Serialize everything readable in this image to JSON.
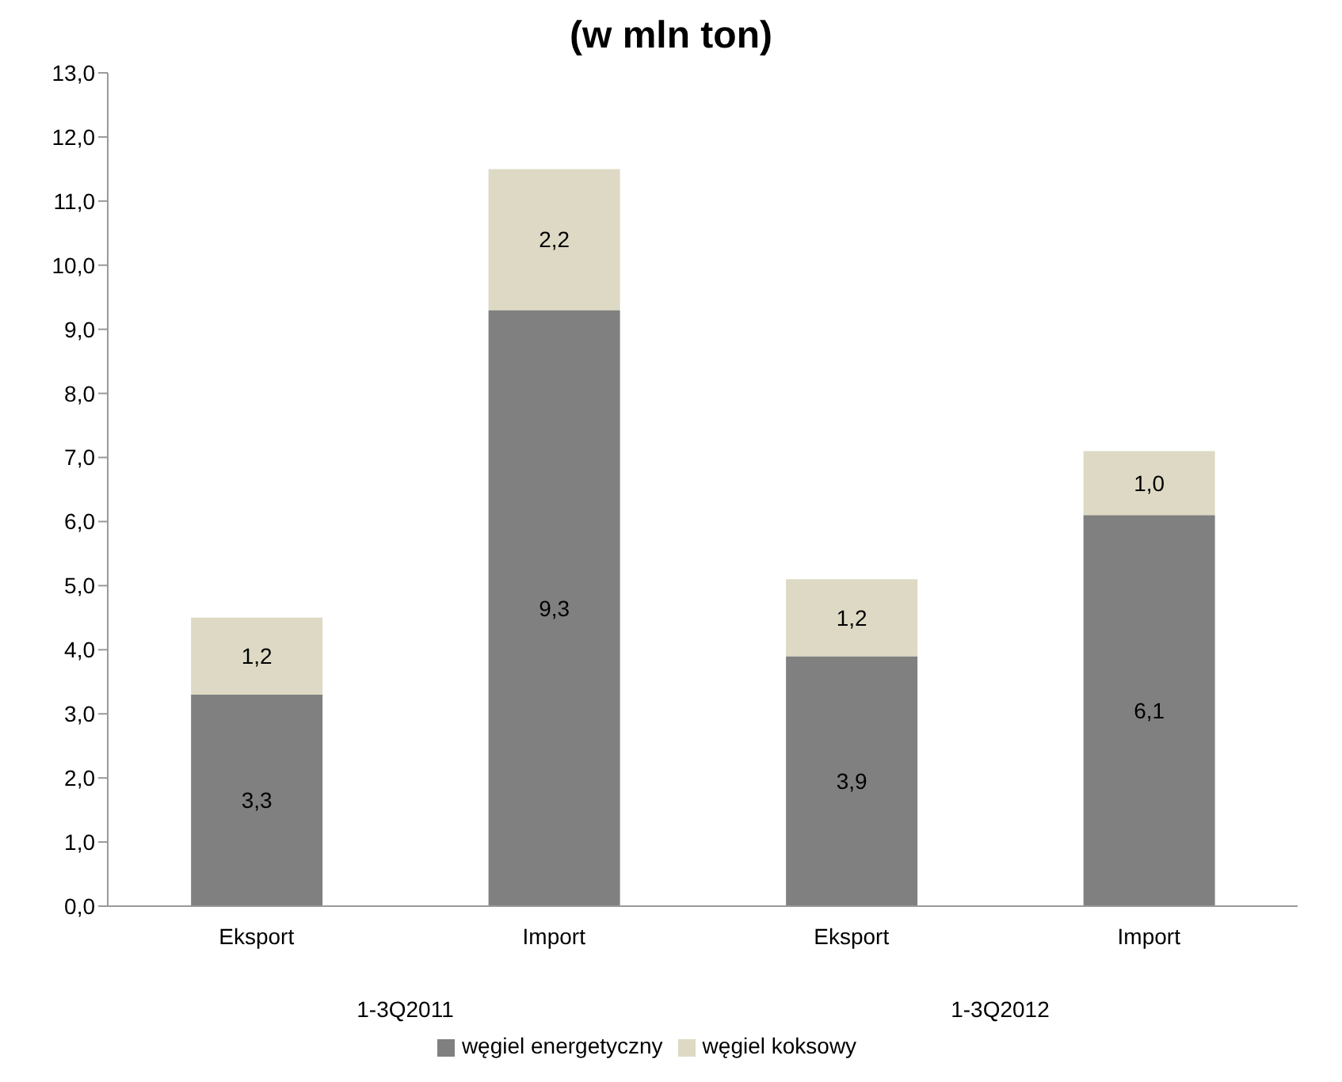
{
  "chart_data": {
    "type": "bar",
    "title": "(w mln ton)",
    "stacked": true,
    "categories": [
      "Eksport",
      "Import",
      "Eksport",
      "Import"
    ],
    "annotations": [
      "1-3Q2011",
      "1-3Q2012"
    ],
    "series": [
      {
        "name": "węgiel energetyczny",
        "color": "#808080",
        "values": [
          3.3,
          9.3,
          3.9,
          6.1
        ],
        "value_labels": [
          "3,3",
          "9,3",
          "3,9",
          "6,1"
        ]
      },
      {
        "name": "węgiel koksowy",
        "color": "#ddd9c4",
        "values": [
          1.2,
          2.2,
          1.2,
          1.0
        ],
        "value_labels": [
          "1,2",
          "2,2",
          "1,2",
          "1,0"
        ]
      }
    ],
    "ylim": [
      0,
      13
    ],
    "yticks": [
      {
        "value": 0,
        "label": "0,0"
      },
      {
        "value": 1,
        "label": "1,0"
      },
      {
        "value": 2,
        "label": "2,0"
      },
      {
        "value": 3,
        "label": "3,0"
      },
      {
        "value": 4,
        "label": "4,0"
      },
      {
        "value": 5,
        "label": "5,0"
      },
      {
        "value": 6,
        "label": "6,0"
      },
      {
        "value": 7,
        "label": "7,0"
      },
      {
        "value": 8,
        "label": "8,0"
      },
      {
        "value": 9,
        "label": "9,0"
      },
      {
        "value": 10,
        "label": "10,0"
      },
      {
        "value": 11,
        "label": "11,0"
      },
      {
        "value": 12,
        "label": "12,0"
      },
      {
        "value": 13,
        "label": "13,0"
      }
    ],
    "grid": false,
    "legend": "bottom"
  }
}
